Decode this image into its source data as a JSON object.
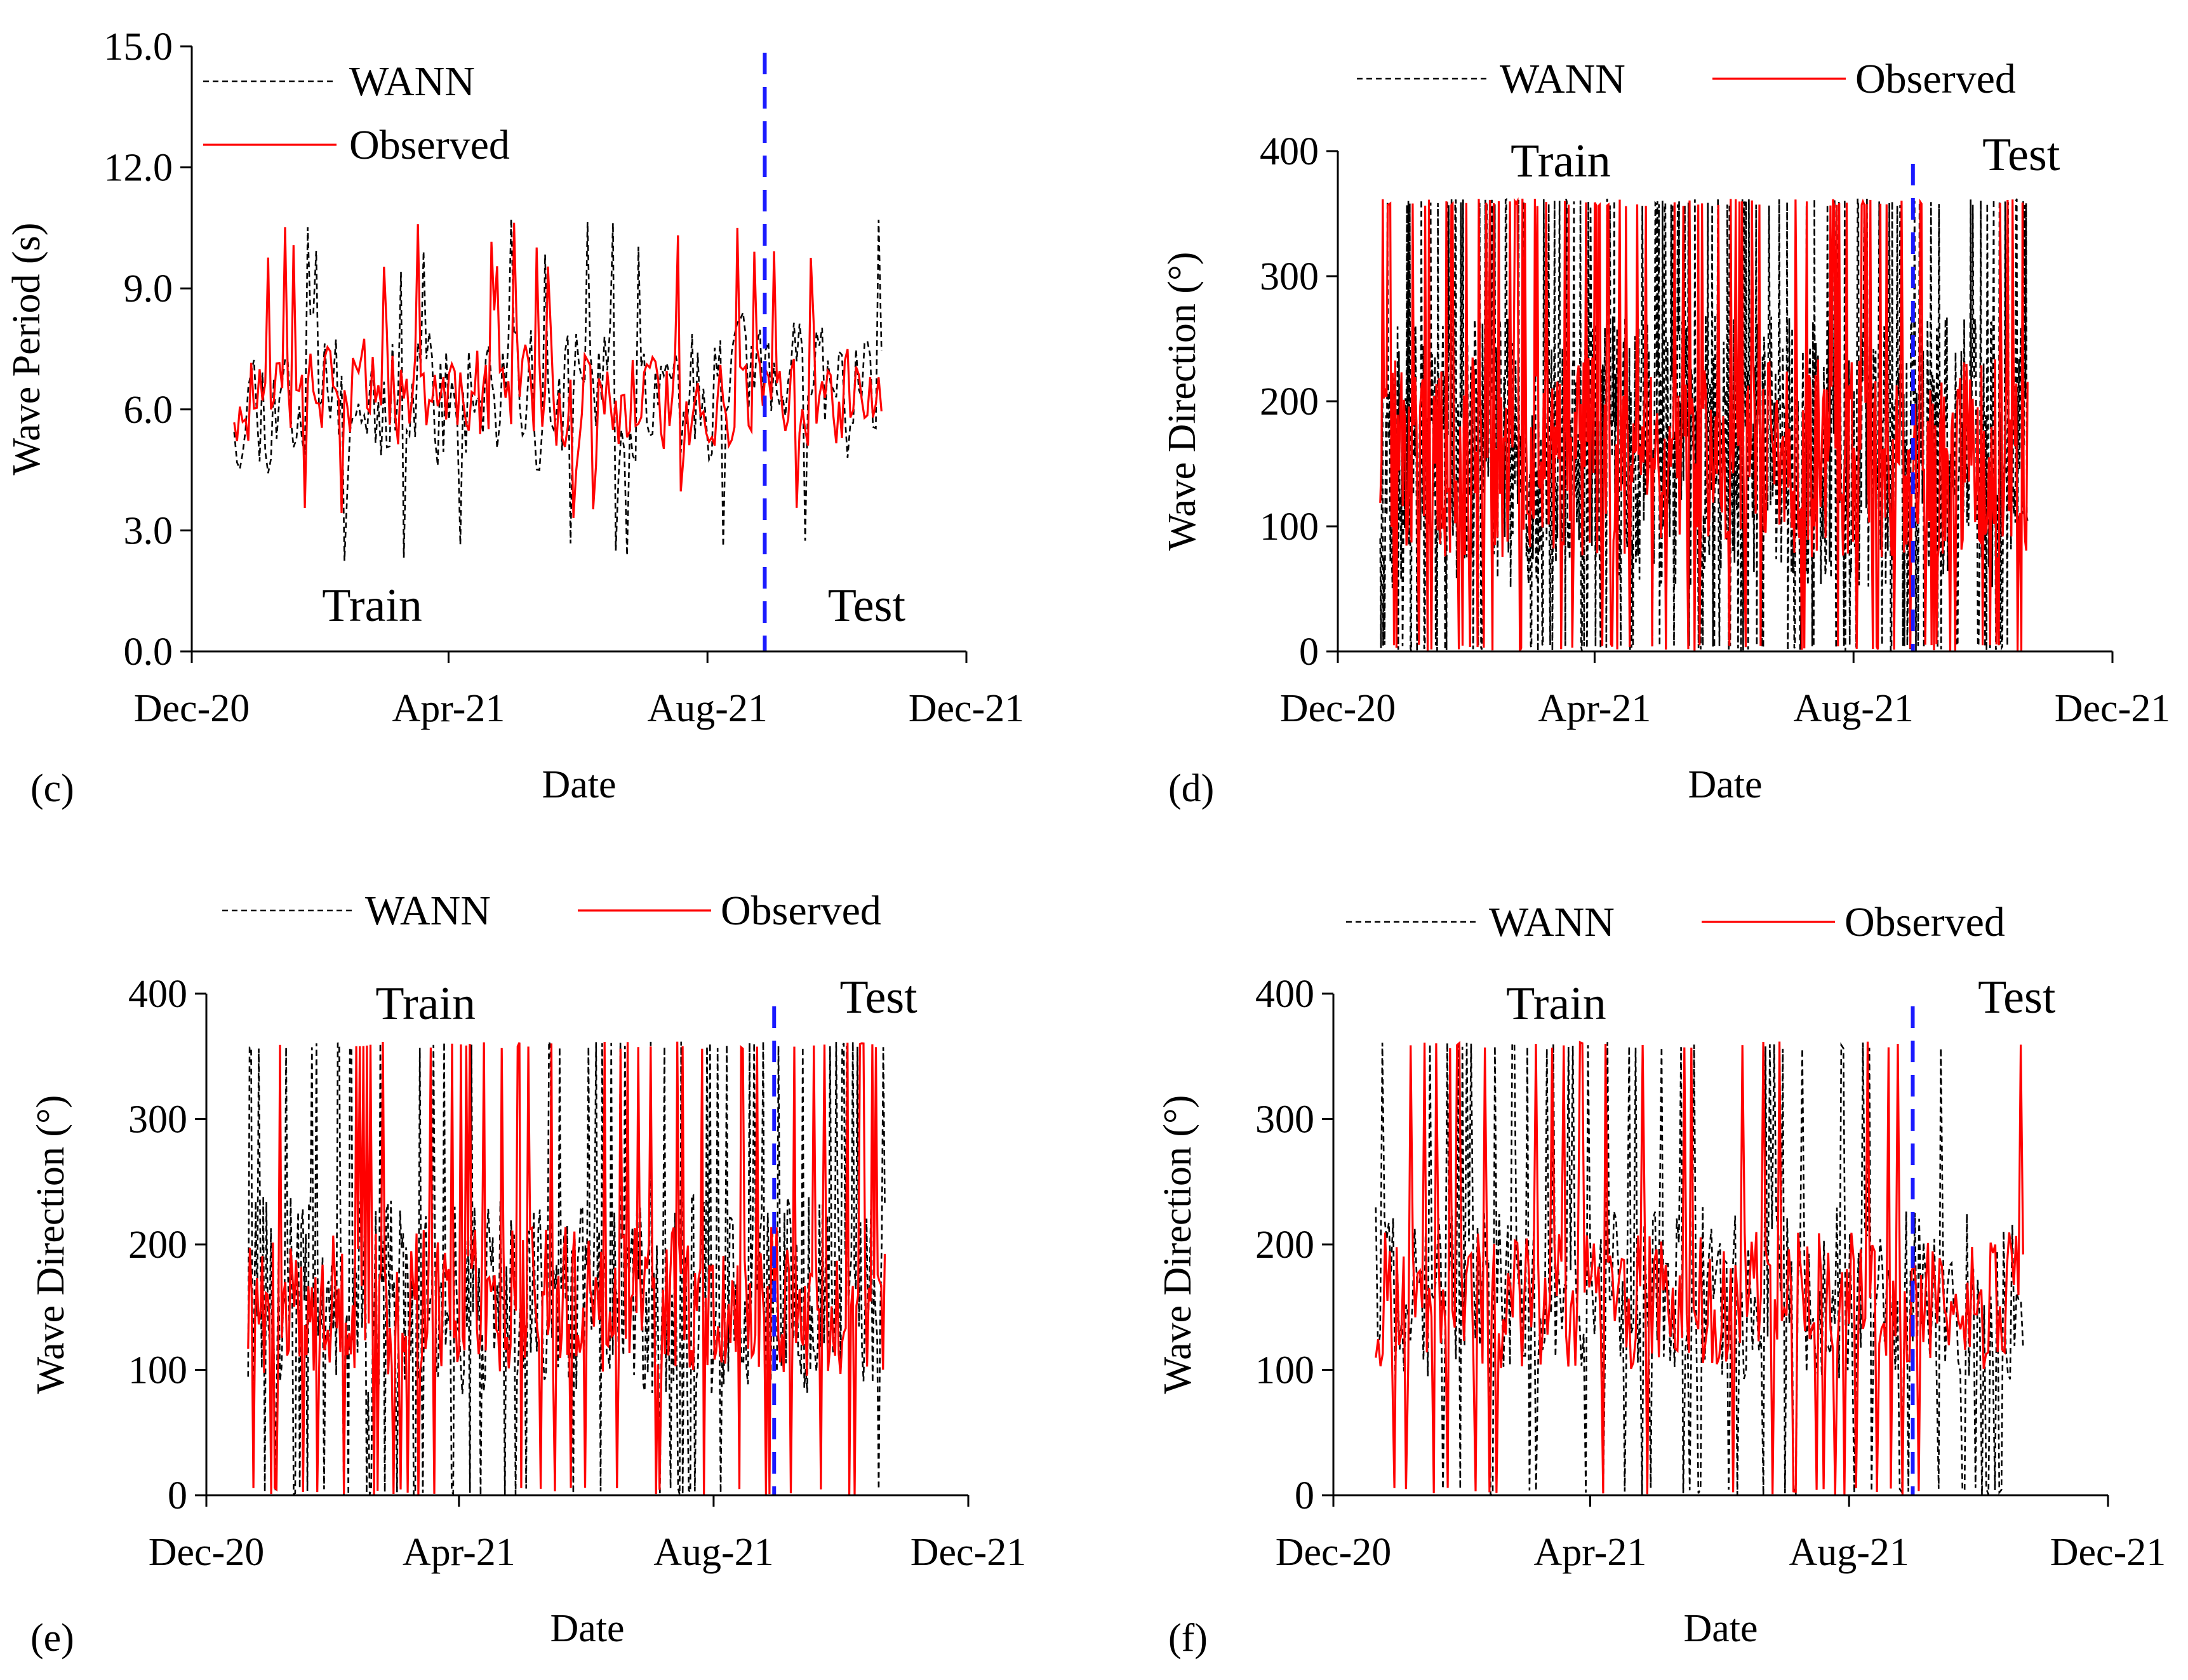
{
  "figure": {
    "legend": {
      "model": "WANN",
      "observed": "Observed"
    },
    "region_labels": {
      "train": "Train",
      "test": "Test"
    },
    "colors": {
      "model": "#000000",
      "observed": "#ff0000",
      "split_line": "#1a1aff"
    }
  },
  "chart_data": [
    {
      "type": "line",
      "panel": "(c)",
      "title": "",
      "xlabel": "Date",
      "ylabel": "Wave Period (s)",
      "x_tick_labels": [
        "Dec-20",
        "Apr-21",
        "Aug-21",
        "Dec-21"
      ],
      "y_tick_labels": [
        "0.0",
        "3.0",
        "6.0",
        "9.0",
        "12.0",
        "15.0"
      ],
      "ylim": [
        0,
        15
      ],
      "y_ticks": [
        0,
        3,
        6,
        9,
        12,
        15
      ],
      "x_range_days": [
        0,
        365
      ],
      "train_test_split_day": 270,
      "series_x_range_days": [
        20,
        325
      ],
      "legend_layout": "stacked-top-left",
      "series": [
        {
          "name": "WANN",
          "style": "dashed",
          "mean": 6.3,
          "amplitude": 2.2,
          "min": 2.2,
          "max": 10.9,
          "points": 230,
          "seed": 11
        },
        {
          "name": "Observed",
          "style": "solid",
          "mean": 6.3,
          "amplitude": 1.6,
          "min": 3.2,
          "max": 10.9,
          "points": 230,
          "seed": 12
        }
      ]
    },
    {
      "type": "line",
      "panel": "(d)",
      "title": "",
      "xlabel": "Date",
      "ylabel": "Wave Direction (°)",
      "x_tick_labels": [
        "Dec-20",
        "Apr-21",
        "Aug-21",
        "Dec-21"
      ],
      "y_tick_labels": [
        "0",
        "100",
        "200",
        "300",
        "400"
      ],
      "ylim": [
        0,
        400
      ],
      "y_ticks": [
        0,
        100,
        200,
        300,
        400
      ],
      "x_range_days": [
        0,
        365
      ],
      "train_test_split_day": 271,
      "series_x_range_days": [
        20,
        325
      ],
      "legend_layout": "inline-top",
      "series": [
        {
          "name": "WANN",
          "style": "dashed",
          "mean": 160,
          "amplitude": 110,
          "min": 0,
          "max": 362,
          "points": 900,
          "seed": 21
        },
        {
          "name": "Observed",
          "style": "solid",
          "mean": 155,
          "amplitude": 80,
          "min": 0,
          "max": 362,
          "points": 520,
          "seed": 22
        }
      ]
    },
    {
      "type": "line",
      "panel": "(e)",
      "title": "",
      "xlabel": "Date",
      "ylabel": "Wave Direction (°)",
      "x_tick_labels": [
        "Dec-20",
        "Apr-21",
        "Aug-21",
        "Dec-21"
      ],
      "y_tick_labels": [
        "0",
        "100",
        "200",
        "300",
        "400"
      ],
      "ylim": [
        0,
        400
      ],
      "y_ticks": [
        0,
        100,
        200,
        300,
        400
      ],
      "x_range_days": [
        0,
        365
      ],
      "train_test_split_day": 272,
      "series_x_range_days": [
        20,
        325
      ],
      "legend_layout": "inline-top",
      "series": [
        {
          "name": "WANN",
          "style": "dashed",
          "mean": 160,
          "amplitude": 80,
          "min": 0,
          "max": 362,
          "points": 420,
          "seed": 31
        },
        {
          "name": "Observed",
          "style": "solid",
          "mean": 155,
          "amplitude": 60,
          "min": 0,
          "max": 362,
          "points": 360,
          "seed": 32
        }
      ]
    },
    {
      "type": "line",
      "panel": "(f)",
      "title": "",
      "xlabel": "Date",
      "ylabel": "Wave Direction (°)",
      "x_tick_labels": [
        "Dec-20",
        "Apr-21",
        "Aug-21",
        "Dec-21"
      ],
      "y_tick_labels": [
        "0",
        "100",
        "200",
        "300",
        "400"
      ],
      "ylim": [
        0,
        400
      ],
      "y_ticks": [
        0,
        100,
        200,
        300,
        400
      ],
      "x_range_days": [
        0,
        365
      ],
      "train_test_split_day": 273,
      "series_x_range_days": [
        20,
        325
      ],
      "legend_layout": "inline-top",
      "series": [
        {
          "name": "WANN",
          "style": "dashed",
          "mean": 160,
          "amplitude": 70,
          "min": 0,
          "max": 362,
          "points": 300,
          "seed": 41
        },
        {
          "name": "Observed",
          "style": "solid",
          "mean": 155,
          "amplitude": 55,
          "min": 0,
          "max": 362,
          "points": 280,
          "seed": 42
        }
      ]
    }
  ]
}
